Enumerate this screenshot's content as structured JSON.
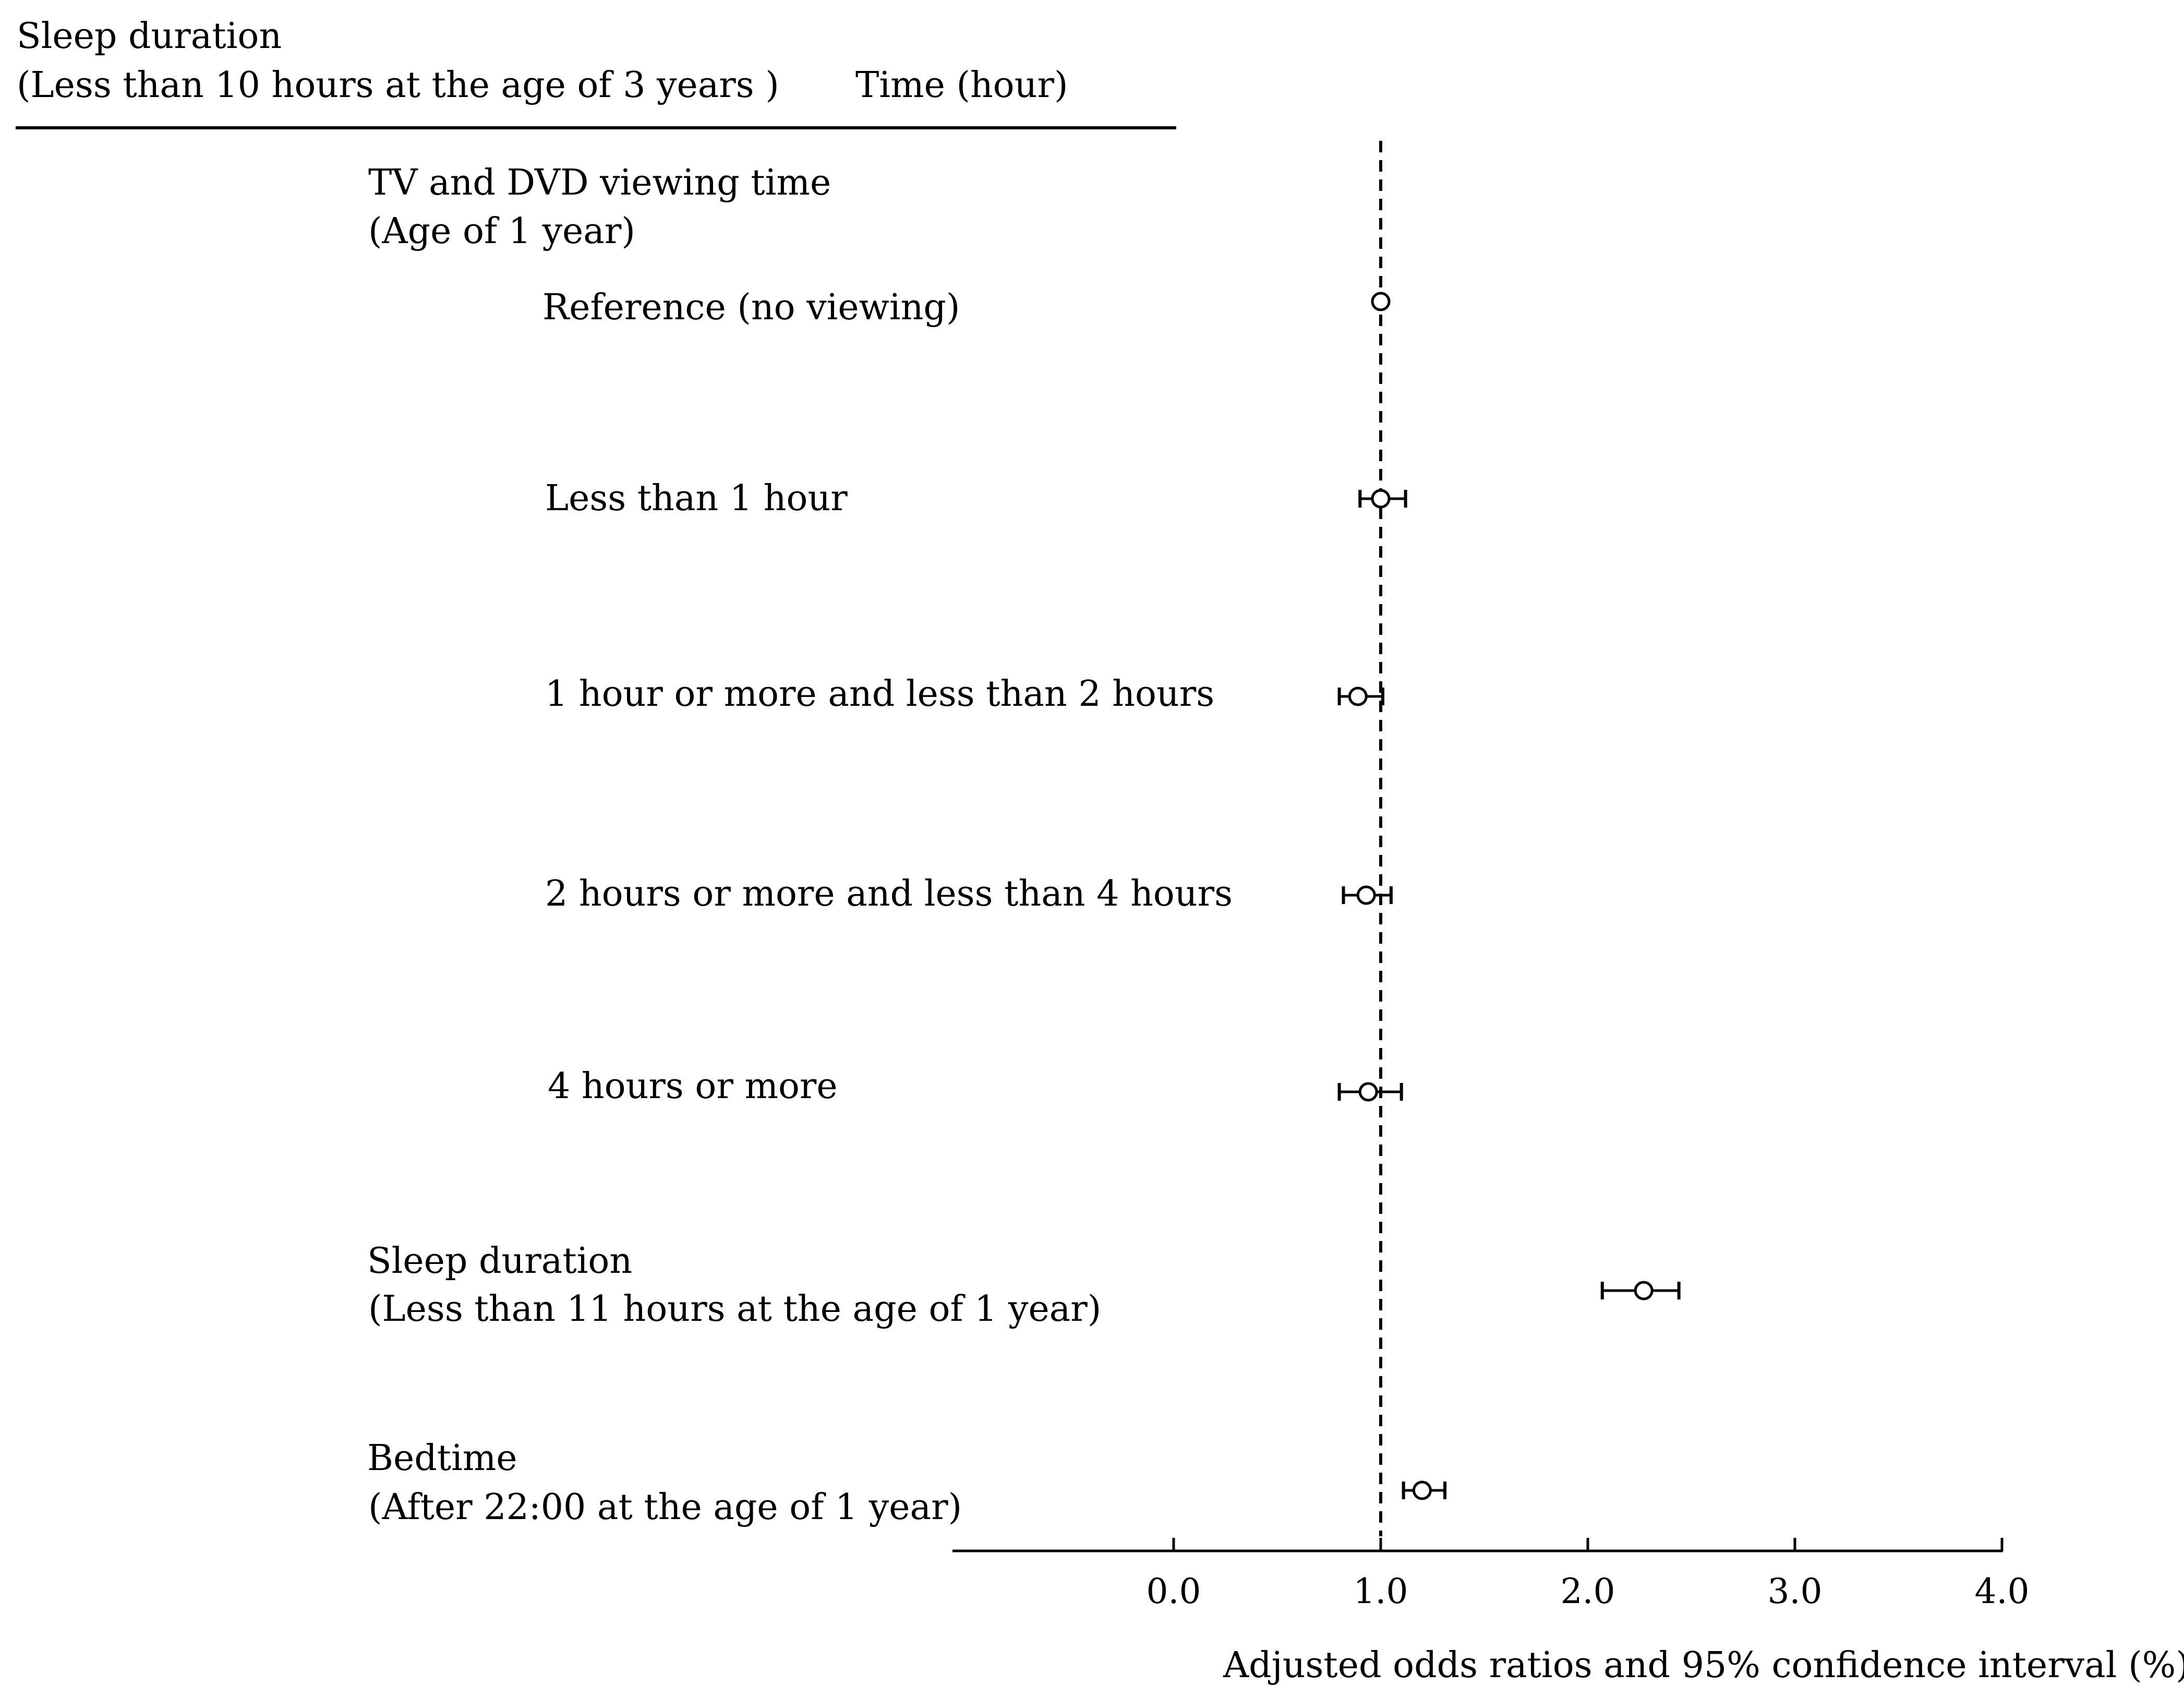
{
  "header": {
    "title_line1": "Sleep duration",
    "title_line2": "(Less than 10 hours at the age of 3 years )",
    "time_label": "Time (hour)"
  },
  "groups": {
    "tv": {
      "line1": "TV and DVD viewing time",
      "line2": "(Age of 1 year)"
    },
    "sleep": {
      "line1": "Sleep duration",
      "line2": "(Less than 11 hours at the age of 1 year)"
    },
    "bedtime": {
      "line1": "Bedtime",
      "line2": "(After 22:00 at the age of 1 year)"
    }
  },
  "chart_data": {
    "type": "scatter",
    "subtype": "forest-plot",
    "xlabel": "Adjusted  odds  ratios and  95% confidence interval (%)",
    "ylabel": "",
    "xlim": [
      -1.1,
      4.0
    ],
    "xticks": [
      0.0,
      1.0,
      2.0,
      3.0,
      4.0
    ],
    "xtick_labels": [
      "0.0",
      "1.0",
      "2.0",
      "3.0",
      "4.0"
    ],
    "reference_line": {
      "x": 1.0,
      "style": "dashed"
    },
    "grid": false,
    "rows": [
      {
        "label": "Reference (no viewing)",
        "group": "TV and DVD viewing time",
        "or": 1.0,
        "lower": 1.0,
        "upper": 1.0
      },
      {
        "label": "Less than 1 hour",
        "group": "TV and DVD viewing time",
        "or": 1.0,
        "lower": 0.9,
        "upper": 1.12
      },
      {
        "label": "1 hour or more and less than 2 hours",
        "group": "TV and DVD viewing time",
        "or": 0.89,
        "lower": 0.8,
        "upper": 1.01
      },
      {
        "label": "2 hours or more and less than 4 hours",
        "group": "TV and DVD viewing time",
        "or": 0.93,
        "lower": 0.82,
        "upper": 1.05
      },
      {
        "label": "4 hours or more",
        "group": "TV and DVD viewing time",
        "or": 0.94,
        "lower": 0.8,
        "upper": 1.1
      },
      {
        "label": "Sleep duration (Less than 11 hours at the age of 1 year)",
        "group": "Sleep duration",
        "or": 2.27,
        "lower": 2.07,
        "upper": 2.44
      },
      {
        "label": "Bedtime (After 22:00 at the age of 1 year)",
        "group": "Bedtime",
        "or": 1.2,
        "lower": 1.11,
        "upper": 1.31
      }
    ]
  }
}
